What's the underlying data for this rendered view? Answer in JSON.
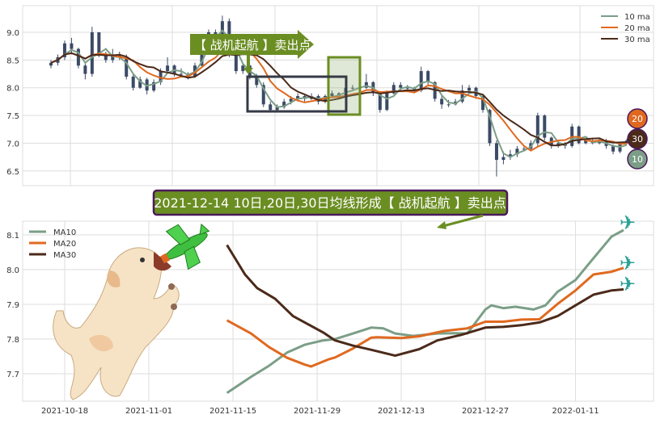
{
  "top_panel": {
    "y_ticks": [
      "9.0",
      "8.5",
      "8.0",
      "7.5",
      "7.0",
      "6.5"
    ],
    "annotation_label": "【 战机起航 】卖出点",
    "legend": [
      "10 ma",
      "20 ma",
      "30 ma"
    ],
    "badges": [
      "20",
      "30",
      "10"
    ]
  },
  "banner": {
    "text": "2021-12-14 10日,20日,30日均线形成【 战机起航 】卖出点"
  },
  "colors": {
    "ma10": "#7b9e87",
    "ma20": "#e0691f",
    "ma30": "#4b2a1a",
    "candle": "#3b4a66",
    "annotation": "#6b8e23",
    "banner_border": "#4b1a5a"
  },
  "chart_data": [
    {
      "type": "candlestick",
      "ylim": [
        6.25,
        9.35
      ],
      "grid": true,
      "legend_placement": "top-right",
      "ohlc": [
        [
          8.4,
          8.5,
          8.35,
          8.45
        ],
        [
          8.45,
          8.6,
          8.4,
          8.55
        ],
        [
          8.55,
          8.85,
          8.5,
          8.8
        ],
        [
          8.8,
          8.9,
          8.6,
          8.7
        ],
        [
          8.7,
          8.72,
          8.35,
          8.4
        ],
        [
          8.4,
          8.45,
          8.15,
          8.25
        ],
        [
          8.25,
          9.1,
          8.2,
          9.0
        ],
        [
          9.0,
          9.0,
          8.55,
          8.6
        ],
        [
          8.6,
          8.65,
          8.45,
          8.5
        ],
        [
          8.5,
          8.7,
          8.45,
          8.6
        ],
        [
          8.6,
          8.65,
          8.5,
          8.55
        ],
        [
          8.55,
          8.6,
          8.15,
          8.2
        ],
        [
          8.2,
          8.25,
          7.95,
          8.0
        ],
        [
          8.0,
          8.2,
          7.98,
          8.15
        ],
        [
          8.15,
          8.18,
          7.88,
          7.95
        ],
        [
          7.95,
          8.15,
          7.92,
          8.1
        ],
        [
          8.1,
          8.35,
          8.05,
          8.3
        ],
        [
          8.3,
          8.55,
          8.25,
          8.4
        ],
        [
          8.4,
          8.42,
          8.2,
          8.25
        ],
        [
          8.25,
          8.35,
          8.2,
          8.25
        ],
        [
          8.25,
          8.28,
          8.15,
          8.2
        ],
        [
          8.2,
          8.45,
          8.18,
          8.4
        ],
        [
          8.4,
          8.85,
          8.38,
          8.8
        ],
        [
          8.8,
          9.05,
          8.75,
          9.0
        ],
        [
          9.0,
          9.05,
          8.85,
          8.9
        ],
        [
          8.9,
          9.3,
          8.85,
          9.2
        ],
        [
          9.2,
          9.25,
          8.55,
          8.6
        ],
        [
          8.6,
          8.65,
          8.25,
          8.3
        ],
        [
          8.3,
          8.45,
          8.25,
          8.4
        ],
        [
          8.4,
          8.42,
          8.15,
          8.2
        ],
        [
          8.2,
          8.25,
          8.0,
          8.05
        ],
        [
          8.05,
          8.1,
          7.65,
          7.7
        ],
        [
          7.7,
          7.75,
          7.55,
          7.6
        ],
        [
          7.6,
          7.7,
          7.55,
          7.65
        ],
        [
          7.65,
          7.8,
          7.62,
          7.75
        ],
        [
          7.75,
          7.85,
          7.7,
          7.8
        ],
        [
          7.8,
          7.9,
          7.75,
          7.85
        ],
        [
          7.85,
          7.88,
          7.75,
          7.8
        ],
        [
          7.8,
          7.9,
          7.78,
          7.85
        ],
        [
          7.85,
          7.88,
          7.7,
          7.75
        ],
        [
          7.75,
          7.88,
          7.72,
          7.85
        ],
        [
          7.85,
          7.95,
          7.82,
          7.9
        ],
        [
          7.9,
          7.92,
          7.8,
          7.85
        ],
        [
          7.85,
          8.02,
          7.82,
          8.0
        ],
        [
          8.0,
          8.05,
          7.95,
          8.0
        ],
        [
          8.0,
          8.05,
          7.95,
          8.0
        ],
        [
          8.0,
          8.25,
          7.98,
          8.1
        ],
        [
          8.1,
          8.12,
          7.85,
          7.9
        ],
        [
          7.9,
          7.92,
          7.55,
          7.6
        ],
        [
          7.6,
          7.95,
          7.58,
          7.9
        ],
        [
          7.9,
          8.1,
          7.88,
          8.05
        ],
        [
          8.05,
          8.1,
          7.95,
          8.0
        ],
        [
          8.0,
          8.05,
          7.95,
          8.0
        ],
        [
          8.0,
          8.02,
          7.9,
          7.95
        ],
        [
          7.95,
          8.38,
          7.92,
          8.3
        ],
        [
          8.3,
          8.32,
          8.05,
          8.1
        ],
        [
          8.1,
          8.12,
          7.75,
          7.8
        ],
        [
          7.8,
          7.85,
          7.62,
          7.7
        ],
        [
          7.7,
          7.78,
          7.65,
          7.7
        ],
        [
          7.7,
          7.8,
          7.68,
          7.75
        ],
        [
          7.75,
          8.05,
          7.72,
          7.95
        ],
        [
          7.95,
          8.05,
          7.9,
          8.0
        ],
        [
          8.0,
          8.02,
          7.8,
          7.85
        ],
        [
          7.85,
          7.88,
          7.55,
          7.6
        ],
        [
          7.6,
          7.62,
          6.95,
          7.0
        ],
        [
          7.0,
          7.05,
          6.4,
          6.7
        ],
        [
          6.7,
          6.85,
          6.62,
          6.75
        ],
        [
          6.75,
          6.88,
          6.7,
          6.8
        ],
        [
          6.8,
          6.95,
          6.75,
          6.9
        ],
        [
          6.9,
          6.95,
          6.85,
          6.9
        ],
        [
          6.9,
          7.05,
          6.88,
          7.0
        ],
        [
          7.0,
          7.55,
          6.95,
          7.5
        ],
        [
          7.5,
          7.52,
          7.05,
          7.1
        ],
        [
          7.1,
          7.12,
          6.9,
          6.95
        ],
        [
          6.95,
          7.05,
          6.92,
          7.0
        ],
        [
          7.0,
          7.02,
          6.9,
          6.95
        ],
        [
          6.95,
          7.35,
          6.92,
          7.3
        ],
        [
          7.3,
          7.32,
          6.98,
          7.0
        ],
        [
          7.0,
          7.08,
          6.98,
          7.05
        ],
        [
          7.05,
          7.1,
          6.98,
          7.0
        ],
        [
          7.0,
          7.1,
          6.98,
          7.05
        ],
        [
          7.05,
          7.08,
          6.9,
          6.95
        ],
        [
          6.95,
          6.98,
          6.8,
          6.85
        ],
        [
          6.85,
          7.02,
          6.82,
          7.0
        ],
        [
          7.0,
          7.08,
          6.98,
          7.05
        ]
      ]
    },
    {
      "type": "line",
      "x_ticks": [
        "2021-10-18",
        "2021-11-01",
        "2021-11-15",
        "2021-11-29",
        "2021-12-13",
        "2021-12-27",
        "2022-01-11"
      ],
      "y_ticks": [
        "8.1",
        "8.0",
        "7.9",
        "7.8",
        "7.7"
      ],
      "ylim": [
        7.62,
        8.14
      ],
      "grid": true,
      "legend_placement": "top-left",
      "series": [
        {
          "name": "MA10",
          "points": [
            [
              "2021-11-14",
              7.645
            ],
            [
              "2021-11-18",
              7.691
            ],
            [
              "2021-11-21",
              7.723
            ],
            [
              "2021-11-24",
              7.761
            ],
            [
              "2021-11-27",
              7.784
            ],
            [
              "2021-11-30",
              7.796
            ],
            [
              "2021-12-02",
              7.8
            ],
            [
              "2021-12-05",
              7.816
            ],
            [
              "2021-12-08",
              7.833
            ],
            [
              "2021-12-10",
              7.831
            ],
            [
              "2021-12-12",
              7.816
            ],
            [
              "2021-12-15",
              7.809
            ],
            [
              "2021-12-19",
              7.816
            ],
            [
              "2021-12-22",
              7.817
            ],
            [
              "2021-12-24",
              7.816
            ],
            [
              "2021-12-27",
              7.885
            ],
            [
              "2021-12-28",
              7.897
            ],
            [
              "2021-12-30",
              7.889
            ],
            [
              "2022-01-01",
              7.893
            ],
            [
              "2022-01-04",
              7.885
            ],
            [
              "2022-01-06",
              7.897
            ],
            [
              "2022-01-08",
              7.936
            ],
            [
              "2022-01-11",
              7.97
            ],
            [
              "2022-01-14",
              8.033
            ],
            [
              "2022-01-17",
              8.095
            ],
            [
              "2022-01-19",
              8.114
            ]
          ]
        },
        {
          "name": "MA20",
          "points": [
            [
              "2021-11-14",
              7.854
            ],
            [
              "2021-11-18",
              7.816
            ],
            [
              "2021-11-21",
              7.777
            ],
            [
              "2021-11-24",
              7.746
            ],
            [
              "2021-11-27",
              7.726
            ],
            [
              "2021-11-28",
              7.721
            ],
            [
              "2021-12-01",
              7.742
            ],
            [
              "2021-12-02",
              7.747
            ],
            [
              "2021-12-05",
              7.773
            ],
            [
              "2021-12-08",
              7.804
            ],
            [
              "2021-12-09",
              7.805
            ],
            [
              "2021-12-13",
              7.803
            ],
            [
              "2021-12-16",
              7.808
            ],
            [
              "2021-12-20",
              7.823
            ],
            [
              "2021-12-24",
              7.831
            ],
            [
              "2021-12-27",
              7.85
            ],
            [
              "2021-12-30",
              7.85
            ],
            [
              "2022-01-02",
              7.856
            ],
            [
              "2022-01-05",
              7.857
            ],
            [
              "2022-01-08",
              7.901
            ],
            [
              "2022-01-11",
              7.94
            ],
            [
              "2022-01-14",
              7.986
            ],
            [
              "2022-01-17",
              7.994
            ],
            [
              "2022-01-19",
              8.005
            ]
          ]
        },
        {
          "name": "MA30",
          "points": [
            [
              "2021-11-14",
              8.071
            ],
            [
              "2021-11-17",
              7.986
            ],
            [
              "2021-11-19",
              7.947
            ],
            [
              "2021-11-22",
              7.916
            ],
            [
              "2021-11-25",
              7.866
            ],
            [
              "2021-11-30",
              7.819
            ],
            [
              "2021-12-02",
              7.796
            ],
            [
              "2021-12-05",
              7.781
            ],
            [
              "2021-12-08",
              7.769
            ],
            [
              "2021-12-12",
              7.752
            ],
            [
              "2021-12-16",
              7.771
            ],
            [
              "2021-12-19",
              7.796
            ],
            [
              "2021-12-23",
              7.812
            ],
            [
              "2021-12-27",
              7.833
            ],
            [
              "2021-12-30",
              7.835
            ],
            [
              "2022-01-02",
              7.84
            ],
            [
              "2022-01-05",
              7.848
            ],
            [
              "2022-01-08",
              7.866
            ],
            [
              "2022-01-11",
              7.897
            ],
            [
              "2022-01-14",
              7.928
            ],
            [
              "2022-01-17",
              7.94
            ],
            [
              "2022-01-19",
              7.943
            ]
          ]
        }
      ]
    }
  ]
}
